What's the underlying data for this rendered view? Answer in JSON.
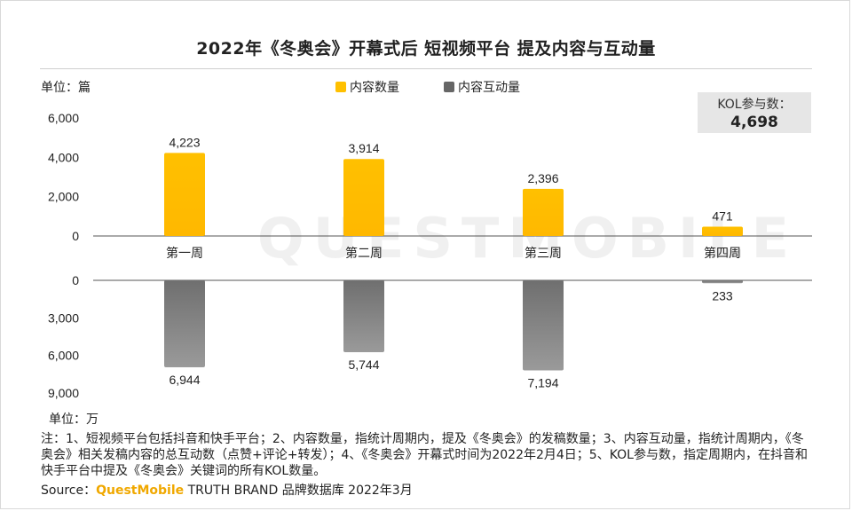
{
  "title": "2022年《冬奥会》开幕式后 短视频平台 提及内容与互动量",
  "unit_top": "单位：篇",
  "unit_bottom": "单位：万",
  "legend": [
    {
      "label": "内容数量",
      "color": "#ffc000"
    },
    {
      "label": "内容互动量",
      "color": "#808080"
    }
  ],
  "kol": {
    "label": "KOL参与数：",
    "value": "4,698"
  },
  "watermark": "QUESTMOBILE",
  "note": "注：1、短视频平台包括抖音和快手平台；2、内容数量，指统计周期内，提及《冬奥会》的发稿数量；3、内容互动量，指统计周期内，《冬奥会》相关发稿内容的总互动数（点赞+评论+转发）；4、《冬奥会》开幕式时间为2022年2月4日；5、KOL参与数，指定周期内，在抖音和快手平台中提及《冬奥会》关键词的所有KOL数量。",
  "source": {
    "prefix": "Source：",
    "brand": "QuestMobile",
    "suffix": " TRUTH BRAND 品牌数据库 2022年3月"
  },
  "chart_data": [
    {
      "type": "bar",
      "title": "内容数量",
      "ylabel": "单位：篇",
      "categories": [
        "第一周",
        "第二周",
        "第三周",
        "第四周"
      ],
      "values": [
        4223,
        3914,
        2396,
        471
      ],
      "value_labels": [
        "4,223",
        "3,914",
        "2,396",
        "471"
      ],
      "ylim": [
        0,
        6000
      ],
      "yticks": [
        "0",
        "2,000",
        "4,000",
        "6,000"
      ],
      "yticks_values": [
        0,
        2000,
        4000,
        6000
      ],
      "color": "#ffc000"
    },
    {
      "type": "bar",
      "title": "内容互动量",
      "ylabel": "单位：万",
      "orientation": "downward",
      "categories": [
        "第一周",
        "第二周",
        "第三周",
        "第四周"
      ],
      "values": [
        6944,
        5744,
        7194,
        233
      ],
      "value_labels": [
        "6,944",
        "5,744",
        "7,194",
        "233"
      ],
      "ylim": [
        0,
        9000
      ],
      "yticks": [
        "0",
        "3,000",
        "6,000",
        "9,000"
      ],
      "yticks_values": [
        0,
        3000,
        6000,
        9000
      ],
      "color": "#808080"
    }
  ]
}
